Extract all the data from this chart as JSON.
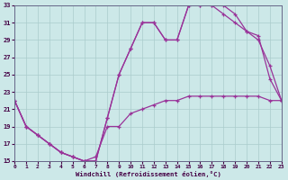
{
  "xlabel": "Windchill (Refroidissement éolien,°C)",
  "bg_color": "#cce8e8",
  "line_color": "#993399",
  "grid_color": "#aacccc",
  "xlim": [
    0,
    23
  ],
  "ylim": [
    15,
    33
  ],
  "xticks": [
    0,
    1,
    2,
    3,
    4,
    5,
    6,
    7,
    8,
    9,
    10,
    11,
    12,
    13,
    14,
    15,
    16,
    17,
    18,
    19,
    20,
    21,
    22,
    23
  ],
  "yticks": [
    15,
    17,
    19,
    21,
    23,
    25,
    27,
    29,
    31,
    33
  ],
  "line1_x": [
    0,
    1,
    2,
    3,
    4,
    5,
    6,
    7,
    8,
    9,
    10,
    11,
    12,
    13,
    14,
    15,
    16,
    17,
    18,
    19,
    20,
    21,
    22,
    23
  ],
  "line1_y": [
    22,
    19,
    18,
    17,
    16,
    15.5,
    15,
    15,
    20,
    25,
    28,
    31,
    31,
    29,
    29,
    33,
    33,
    33,
    33,
    32,
    30,
    29.5,
    24.5,
    22
  ],
  "line2_x": [
    0,
    1,
    2,
    3,
    4,
    5,
    6,
    7,
    8,
    9,
    10,
    11,
    12,
    13,
    14,
    15,
    16,
    17,
    18,
    19,
    20,
    21,
    22,
    23
  ],
  "line2_y": [
    22,
    19,
    18,
    17,
    16,
    15.5,
    15,
    15,
    20,
    25,
    28,
    31,
    31,
    29,
    29,
    33,
    33,
    33,
    32,
    31,
    30,
    29,
    26,
    22
  ],
  "line3_x": [
    0,
    1,
    2,
    3,
    4,
    5,
    6,
    7,
    8,
    9,
    10,
    11,
    12,
    13,
    14,
    15,
    16,
    17,
    18,
    19,
    20,
    21,
    22,
    23
  ],
  "line3_y": [
    22,
    19,
    18,
    17,
    16,
    15.5,
    15,
    15.5,
    19,
    19,
    20.5,
    21,
    21.5,
    22,
    22,
    22.5,
    22.5,
    22.5,
    22.5,
    22.5,
    22.5,
    22.5,
    22,
    22
  ]
}
